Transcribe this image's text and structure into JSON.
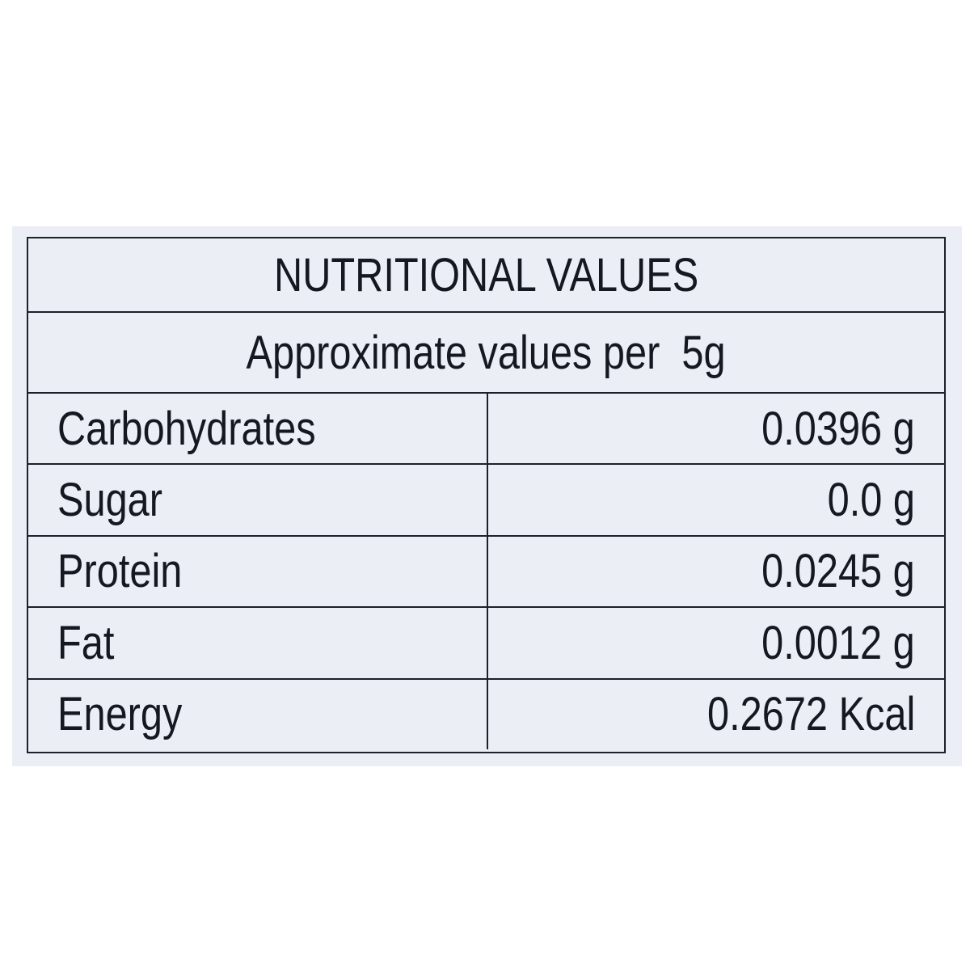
{
  "title": "NUTRITIONAL VALUES",
  "subtitle": "Approximate values per  5g",
  "table": {
    "rows": [
      [
        "Carbohydrates",
        "0.0396 g"
      ],
      [
        "Sugar",
        "0.0 g"
      ],
      [
        "Protein",
        "0.0245 g"
      ],
      [
        "Fat",
        "0.0012 g"
      ],
      [
        "Energy",
        "0.2672 Kcal"
      ]
    ]
  }
}
